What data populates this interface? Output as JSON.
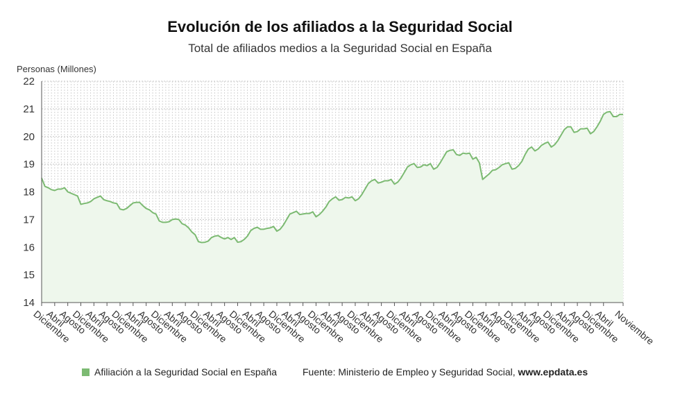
{
  "title": "Evolución de los afiliados a la Seguridad Social",
  "subtitle": "Total de afiliados medios a la Seguridad Social en España",
  "legend_label": "Afiliación a la Seguridad Social en España",
  "source_text": "Fuente: Ministerio de Empleo y Seguridad Social,",
  "source_site": "www.epdata.es",
  "colors": {
    "line": "#7cba72",
    "fill": "#eef7ec",
    "grid": "#c8c8c8"
  },
  "chart_data": {
    "type": "area",
    "ylabel": "Personas (Millones)",
    "xlabel": "",
    "ylim": [
      14,
      22
    ],
    "yticks": [
      14,
      15,
      16,
      17,
      18,
      19,
      20,
      21,
      22
    ],
    "grid": true,
    "legend": "bottom",
    "x_tick_labels": [
      "Diciembre",
      "Abril",
      "Agosto",
      "Diciembre",
      "Abril",
      "Agosto",
      "Diciembre",
      "Abril",
      "Agosto",
      "Diciembre",
      "Abril",
      "Agosto",
      "Diciembre",
      "Abril",
      "Agosto",
      "Diciembre",
      "Abril",
      "Agosto",
      "Diciembre",
      "Abril",
      "Agosto",
      "Diciembre",
      "Abril",
      "Agosto",
      "Diciembre",
      "Abril",
      "Agosto",
      "Diciembre",
      "Abril",
      "Agosto",
      "Diciembre",
      "Abril",
      "Agosto",
      "Diciembre",
      "Abril",
      "Agosto",
      "Diciembre",
      "Abril",
      "Agosto",
      "Diciembre",
      "Abril",
      "Agosto",
      "Diciembre",
      "Abril",
      "Noviembre"
    ],
    "series": [
      {
        "name": "Afiliación a la Seguridad Social en España",
        "values": [
          18.5,
          18.2,
          18.15,
          18.08,
          18.05,
          18.1,
          18.1,
          18.15,
          18.0,
          17.95,
          17.9,
          17.85,
          17.55,
          17.58,
          17.6,
          17.65,
          17.75,
          17.8,
          17.85,
          17.72,
          17.68,
          17.65,
          17.6,
          17.58,
          17.38,
          17.35,
          17.4,
          17.5,
          17.6,
          17.62,
          17.62,
          17.5,
          17.4,
          17.35,
          17.25,
          17.2,
          16.95,
          16.9,
          16.9,
          16.92,
          17.0,
          17.02,
          17.0,
          16.85,
          16.8,
          16.7,
          16.55,
          16.45,
          16.2,
          16.17,
          16.18,
          16.22,
          16.35,
          16.4,
          16.42,
          16.35,
          16.3,
          16.35,
          16.28,
          16.35,
          16.18,
          16.2,
          16.28,
          16.4,
          16.6,
          16.68,
          16.72,
          16.65,
          16.65,
          16.68,
          16.7,
          16.75,
          16.58,
          16.65,
          16.8,
          17.0,
          17.2,
          17.25,
          17.3,
          17.18,
          17.2,
          17.22,
          17.22,
          17.28,
          17.1,
          17.18,
          17.3,
          17.45,
          17.65,
          17.75,
          17.82,
          17.7,
          17.72,
          17.8,
          17.78,
          17.82,
          17.68,
          17.75,
          17.9,
          18.1,
          18.3,
          18.4,
          18.45,
          18.32,
          18.35,
          18.4,
          18.4,
          18.45,
          18.28,
          18.35,
          18.5,
          18.7,
          18.9,
          18.98,
          19.02,
          18.88,
          18.9,
          18.98,
          18.95,
          19.02,
          18.82,
          18.88,
          19.05,
          19.25,
          19.45,
          19.5,
          19.52,
          19.35,
          19.32,
          19.4,
          19.38,
          19.4,
          19.18,
          19.25,
          19.05,
          18.45,
          18.55,
          18.65,
          18.78,
          18.8,
          18.88,
          18.98,
          19.02,
          19.05,
          18.82,
          18.85,
          18.95,
          19.1,
          19.35,
          19.55,
          19.62,
          19.48,
          19.55,
          19.68,
          19.75,
          19.8,
          19.62,
          19.7,
          19.85,
          20.05,
          20.25,
          20.35,
          20.35,
          20.15,
          20.18,
          20.28,
          20.28,
          20.3,
          20.1,
          20.18,
          20.35,
          20.55,
          20.8,
          20.88,
          20.9,
          20.72,
          20.72,
          20.8,
          20.8
        ]
      }
    ]
  }
}
